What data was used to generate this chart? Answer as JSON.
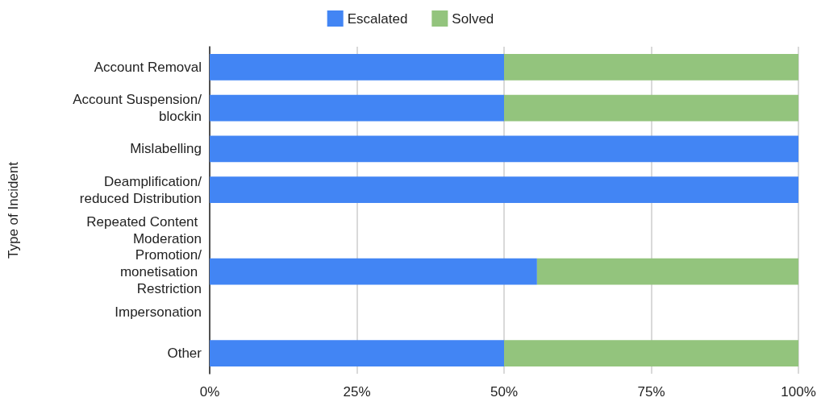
{
  "chart_data": {
    "type": "bar",
    "orientation": "horizontal",
    "stacked": true,
    "ylabel": "Type of Incident",
    "categories": [
      "Account Removal",
      "Account Suspension/blockin",
      "Mislabelling",
      "Deamplification/reduced Distribution",
      "Repeated Content Moderation",
      "Promotion/monetisation Restriction",
      "Impersonation",
      "Other"
    ],
    "series": [
      {
        "name": "Escalated",
        "color": "#4285f4",
        "values": [
          50,
          50,
          100,
          100,
          null,
          55.6,
          null,
          50
        ]
      },
      {
        "name": "Solved",
        "color": "#93c47d",
        "values": [
          50,
          50,
          0,
          0,
          null,
          44.4,
          null,
          50
        ]
      }
    ],
    "xlim": [
      0,
      100
    ],
    "xticks": [
      {
        "value": 0,
        "label": "0%"
      },
      {
        "value": 25,
        "label": "25%"
      },
      {
        "value": 50,
        "label": "50%"
      },
      {
        "value": 75,
        "label": "75%"
      },
      {
        "value": 100,
        "label": "100%"
      }
    ],
    "grid": "x",
    "legend": "top"
  }
}
